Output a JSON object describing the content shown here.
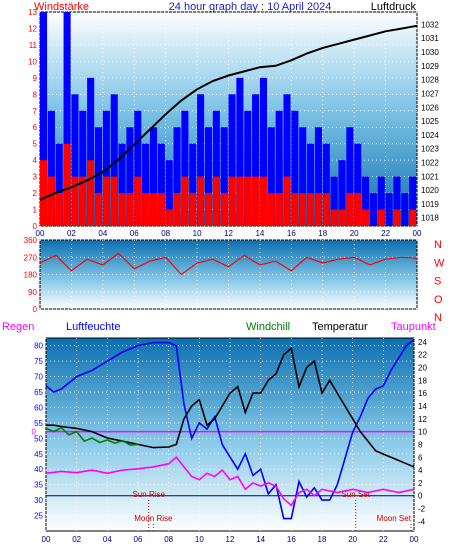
{
  "header": {
    "left": "Windstärke",
    "title": "24 hour graph day : 10 April 2024",
    "right": "Luftdruck"
  },
  "colors": {
    "wind_speed": "#ff0000",
    "wind_gust": "#0000ff",
    "pressure": "#000000",
    "wind_dir": "#ff0000",
    "humidity": "#0000ff",
    "windchill": "#008000",
    "temperature": "#000000",
    "dewpoint": "#ff00ff",
    "rain": "#ff00ff",
    "grid": "#ffffff"
  },
  "x_ticks": [
    "00",
    "02",
    "04",
    "06",
    "08",
    "10",
    "12",
    "14",
    "16",
    "18",
    "20",
    "22",
    "00"
  ],
  "chart_data": [
    {
      "type": "bar",
      "title": "24 hour graph day : 10 April 2024",
      "y_left_label": "Windstärke",
      "y_right_label": "Luftdruck",
      "y_left_range": [
        0,
        13
      ],
      "y_right_range": [
        1017.4,
        1032.9
      ],
      "y_left_ticks": [
        "0",
        "1",
        "2",
        "3",
        "4",
        "5",
        "6",
        "7",
        "8",
        "9",
        "10",
        "11",
        "12",
        "13"
      ],
      "y_right_ticks": [
        "1018",
        "1019",
        "1020",
        "1021",
        "1022",
        "1023",
        "1024",
        "1025",
        "1026",
        "1027",
        "1028",
        "1029",
        "1030",
        "1031",
        "1032"
      ],
      "x_range": [
        0,
        24
      ],
      "series": [
        {
          "name": "Luftdruck",
          "type": "line",
          "x": [
            0,
            1,
            2,
            3,
            4,
            5,
            6,
            7,
            8,
            9,
            10,
            11,
            12,
            13,
            14,
            15,
            16,
            17,
            18,
            19,
            20,
            21,
            22,
            23,
            24
          ],
          "values": [
            1019.3,
            1019.8,
            1020.2,
            1020.7,
            1021.3,
            1022.2,
            1023.3,
            1024.4,
            1025.5,
            1026.5,
            1027.3,
            1027.9,
            1028.3,
            1028.6,
            1028.9,
            1029.0,
            1029.4,
            1029.9,
            1030.3,
            1030.6,
            1030.9,
            1031.2,
            1031.5,
            1031.7,
            1031.9
          ]
        },
        {
          "name": "Wind gust (Bft)",
          "type": "bar",
          "x": [
            0,
            0.5,
            1,
            1.5,
            2,
            2.5,
            3,
            3.5,
            4,
            4.5,
            5,
            5.5,
            6,
            6.5,
            7,
            7.5,
            8,
            8.5,
            9,
            9.5,
            10,
            10.5,
            11,
            11.5,
            12,
            12.5,
            13,
            13.5,
            14,
            14.5,
            15,
            15.5,
            16,
            16.5,
            17,
            17.5,
            18,
            18.5,
            19,
            19.5,
            20,
            20.5,
            21,
            21.5,
            22,
            22.5,
            23,
            23.5
          ],
          "values": [
            13,
            7,
            5,
            13,
            8,
            7,
            9,
            6,
            7,
            8,
            5,
            6,
            7,
            5,
            6,
            5,
            4,
            6,
            7,
            5,
            8,
            6,
            7,
            6,
            8,
            9,
            7,
            8,
            9,
            6,
            7,
            8,
            7,
            6,
            5,
            6,
            5,
            3,
            4,
            6,
            5,
            3,
            2,
            3,
            2,
            3,
            2,
            3
          ]
        },
        {
          "name": "Wind speed (Bft)",
          "type": "bar",
          "x": [
            0,
            0.5,
            1,
            1.5,
            2,
            2.5,
            3,
            3.5,
            4,
            4.5,
            5,
            5.5,
            6,
            6.5,
            7,
            7.5,
            8,
            8.5,
            9,
            9.5,
            10,
            10.5,
            11,
            11.5,
            12,
            12.5,
            13,
            13.5,
            14,
            14.5,
            15,
            15.5,
            16,
            16.5,
            17,
            17.5,
            18,
            18.5,
            19,
            19.5,
            20,
            20.5,
            21,
            21.5,
            22,
            22.5,
            23,
            23.5
          ],
          "values": [
            4,
            3,
            2,
            5,
            3,
            3,
            4,
            2,
            3,
            3,
            2,
            2,
            3,
            2,
            2,
            2,
            1,
            2,
            3,
            2,
            3,
            2,
            3,
            2,
            3,
            3,
            3,
            3,
            3,
            2,
            2,
            3,
            2,
            2,
            2,
            2,
            2,
            1,
            1,
            2,
            2,
            1,
            0,
            1,
            0,
            1,
            0,
            1
          ]
        }
      ]
    },
    {
      "type": "line",
      "title": "",
      "y_range": [
        0,
        360
      ],
      "y_ticks": [
        "0",
        "90",
        "180",
        "270",
        "360"
      ],
      "y_right_labels": [
        "N",
        "W",
        "S",
        "O",
        "N"
      ],
      "x_range": [
        0,
        24
      ],
      "series": [
        {
          "name": "Windrichtung",
          "x": [
            0,
            1,
            2,
            3,
            4,
            5,
            6,
            7,
            8,
            9,
            10,
            11,
            12,
            13,
            14,
            15,
            16,
            17,
            18,
            19,
            20,
            21,
            22,
            23,
            24
          ],
          "values": [
            240,
            280,
            200,
            260,
            230,
            290,
            210,
            250,
            270,
            180,
            240,
            260,
            220,
            280,
            230,
            250,
            200,
            270,
            240,
            260,
            270,
            230,
            260,
            270,
            265
          ]
        }
      ]
    },
    {
      "type": "line",
      "title": "",
      "legend": [
        "Regen",
        "Luftfeuchte",
        "Windchill",
        "Temperatur",
        "Taupunkt"
      ],
      "y_left_range": [
        20,
        82.5
      ],
      "y_left_ticks": [
        "25",
        "30",
        "35",
        "40",
        "45",
        "50",
        "55",
        "60",
        "65",
        "70",
        "75",
        "80"
      ],
      "y_right_range": [
        -5.5,
        24.6
      ],
      "y_right_ticks": [
        "-4",
        "-2",
        "0",
        "2",
        "4",
        "6",
        "8",
        "10",
        "12",
        "14",
        "16",
        "18",
        "20",
        "22",
        "24"
      ],
      "rain_axis_label": "0",
      "x_range": [
        0,
        24
      ],
      "annotations": [
        {
          "label": "Sun Rise",
          "x": 6.7
        },
        {
          "label": "Sun Set",
          "x": 20.2
        },
        {
          "label": "Moon Rise",
          "x": 7.0
        },
        {
          "label": "Moon Set",
          "x": 23.8
        }
      ],
      "series": [
        {
          "name": "Luftfeuchte",
          "axis": "left",
          "x": [
            0,
            0.5,
            1,
            2,
            3,
            4,
            5,
            6,
            7,
            8,
            8.5,
            9,
            9.5,
            10,
            10.5,
            11,
            11.5,
            12,
            12.5,
            13,
            13.5,
            14,
            14.5,
            15,
            15.5,
            16,
            16.5,
            17,
            17.5,
            18,
            18.5,
            19,
            20,
            20.5,
            21,
            21.5,
            22,
            22.5,
            23,
            23.5,
            24
          ],
          "values": [
            67,
            65,
            66,
            70,
            72,
            75,
            78,
            80,
            81,
            81,
            80,
            61,
            50,
            55,
            53,
            57,
            48,
            44,
            40,
            45,
            38,
            40,
            32,
            35,
            24,
            24,
            36,
            31,
            34,
            30,
            30,
            35,
            52,
            57,
            63,
            66,
            67,
            72,
            76,
            80,
            82
          ]
        },
        {
          "name": "Temperatur",
          "axis": "right",
          "x": [
            0,
            0.5,
            1,
            2,
            3,
            4,
            5,
            6,
            7,
            8,
            8.5,
            9,
            9.5,
            10,
            10.5,
            11,
            11.5,
            12,
            12.5,
            13,
            13.5,
            14,
            14.5,
            15,
            15.5,
            16,
            16.5,
            17,
            17.5,
            18,
            18.5,
            19,
            19.5,
            20,
            20.5,
            21,
            21.5,
            22,
            22.5,
            23,
            23.5,
            24
          ],
          "values": [
            11,
            11,
            10.8,
            10.5,
            10,
            9,
            8.5,
            8,
            7.5,
            7.6,
            8,
            12,
            14,
            15,
            11,
            12,
            14,
            16,
            17,
            13,
            16,
            16,
            18,
            19,
            22,
            23,
            17,
            20,
            21,
            16,
            18,
            16,
            14,
            12,
            10,
            8.5,
            7,
            6.5,
            6,
            5.5,
            5,
            4.5
          ]
        },
        {
          "name": "Windchill",
          "axis": "right",
          "x": [
            0,
            0.5,
            1,
            1.5,
            2,
            2.5,
            3,
            3.5,
            4,
            4.5,
            5,
            5.5,
            6
          ],
          "values": [
            10.5,
            10,
            10.6,
            9.5,
            10,
            8.5,
            9,
            8.3,
            8.7,
            8.2,
            8.6,
            7.9,
            8
          ]
        },
        {
          "name": "Taupunkt",
          "axis": "right",
          "x": [
            0,
            1,
            2,
            3,
            4,
            5,
            6,
            7,
            8,
            8.5,
            9,
            9.5,
            10,
            10.5,
            11,
            11.5,
            12,
            12.5,
            13,
            13.5,
            14,
            14.5,
            15,
            15.5,
            16,
            16.5,
            17,
            17.5,
            18,
            19,
            20,
            21,
            22,
            23,
            24
          ],
          "values": [
            3.5,
            3.8,
            3.6,
            4,
            3.5,
            4,
            4.2,
            4.5,
            5,
            6,
            4.5,
            3,
            2.5,
            3.5,
            3,
            4,
            2.5,
            3,
            1,
            2,
            1.5,
            2,
            1.5,
            -0.5,
            -1.5,
            0.5,
            1,
            0,
            1,
            0.5,
            1,
            0.5,
            1,
            0.5,
            1
          ]
        },
        {
          "name": "Regen",
          "axis": "rain",
          "x": [
            0,
            24
          ],
          "values": [
            0,
            0
          ]
        }
      ]
    }
  ]
}
